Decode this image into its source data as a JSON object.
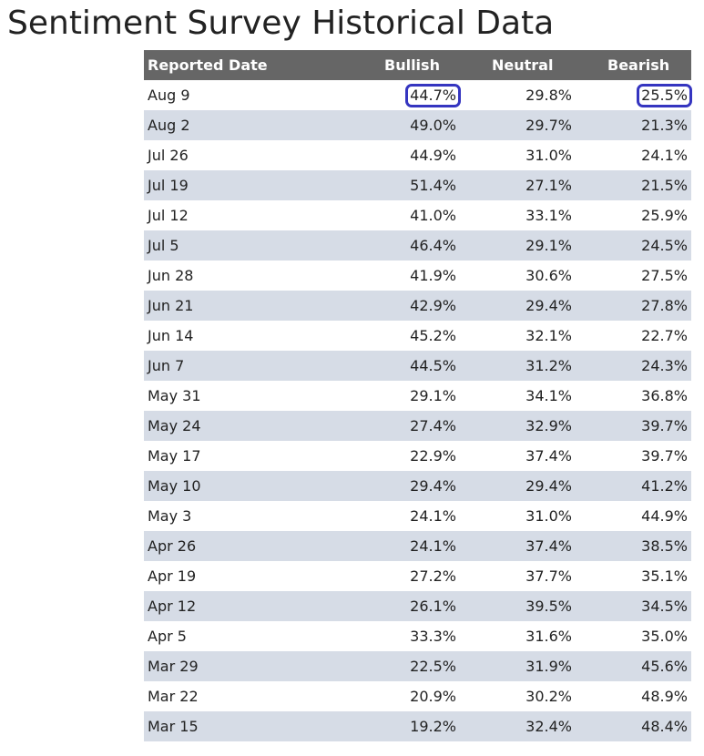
{
  "title": "Sentiment Survey Historical Data",
  "table": {
    "headers": {
      "date": "Reported Date",
      "bullish": "Bullish",
      "neutral": "Neutral",
      "bearish": "Bearish"
    },
    "rows": [
      {
        "date": "Aug 9",
        "bullish": "44.7%",
        "neutral": "29.8%",
        "bearish": "25.5%",
        "highlight": [
          "bullish",
          "bearish"
        ]
      },
      {
        "date": "Aug 2",
        "bullish": "49.0%",
        "neutral": "29.7%",
        "bearish": "21.3%"
      },
      {
        "date": "Jul 26",
        "bullish": "44.9%",
        "neutral": "31.0%",
        "bearish": "24.1%"
      },
      {
        "date": "Jul 19",
        "bullish": "51.4%",
        "neutral": "27.1%",
        "bearish": "21.5%"
      },
      {
        "date": "Jul 12",
        "bullish": "41.0%",
        "neutral": "33.1%",
        "bearish": "25.9%"
      },
      {
        "date": "Jul 5",
        "bullish": "46.4%",
        "neutral": "29.1%",
        "bearish": "24.5%"
      },
      {
        "date": "Jun 28",
        "bullish": "41.9%",
        "neutral": "30.6%",
        "bearish": "27.5%"
      },
      {
        "date": "Jun 21",
        "bullish": "42.9%",
        "neutral": "29.4%",
        "bearish": "27.8%"
      },
      {
        "date": "Jun 14",
        "bullish": "45.2%",
        "neutral": "32.1%",
        "bearish": "22.7%"
      },
      {
        "date": "Jun 7",
        "bullish": "44.5%",
        "neutral": "31.2%",
        "bearish": "24.3%"
      },
      {
        "date": "May 31",
        "bullish": "29.1%",
        "neutral": "34.1%",
        "bearish": "36.8%"
      },
      {
        "date": "May 24",
        "bullish": "27.4%",
        "neutral": "32.9%",
        "bearish": "39.7%"
      },
      {
        "date": "May 17",
        "bullish": "22.9%",
        "neutral": "37.4%",
        "bearish": "39.7%"
      },
      {
        "date": "May 10",
        "bullish": "29.4%",
        "neutral": "29.4%",
        "bearish": "41.2%"
      },
      {
        "date": "May 3",
        "bullish": "24.1%",
        "neutral": "31.0%",
        "bearish": "44.9%"
      },
      {
        "date": "Apr 26",
        "bullish": "24.1%",
        "neutral": "37.4%",
        "bearish": "38.5%"
      },
      {
        "date": "Apr 19",
        "bullish": "27.2%",
        "neutral": "37.7%",
        "bearish": "35.1%"
      },
      {
        "date": "Apr 12",
        "bullish": "26.1%",
        "neutral": "39.5%",
        "bearish": "34.5%"
      },
      {
        "date": "Apr 5",
        "bullish": "33.3%",
        "neutral": "31.6%",
        "bearish": "35.0%"
      },
      {
        "date": "Mar 29",
        "bullish": "22.5%",
        "neutral": "31.9%",
        "bearish": "45.6%"
      },
      {
        "date": "Mar 22",
        "bullish": "20.9%",
        "neutral": "30.2%",
        "bearish": "48.9%"
      },
      {
        "date": "Mar 15",
        "bullish": "19.2%",
        "neutral": "32.4%",
        "bearish": "48.4%"
      }
    ]
  },
  "colors": {
    "header_bg": "#666666",
    "header_text": "#ffffff",
    "stripe": "#d6dce6",
    "highlight_ring": "#3535c0"
  }
}
